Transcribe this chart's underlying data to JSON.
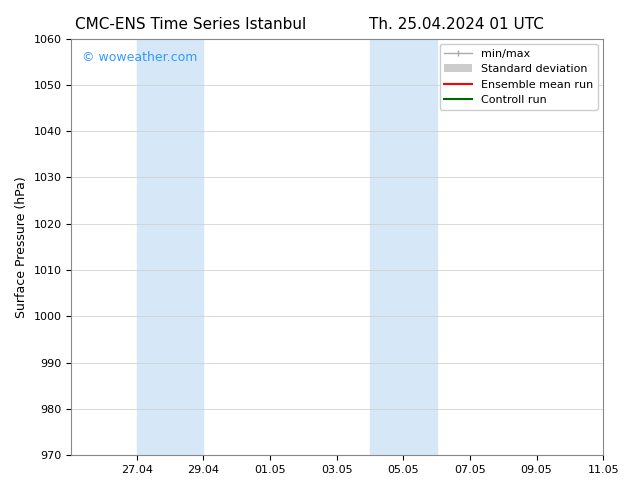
{
  "title_left": "CMC-ENS Time Series Istanbul",
  "title_right": "Th. 25.04.2024 01 UTC",
  "ylabel": "Surface Pressure (hPa)",
  "ylim": [
    970,
    1060
  ],
  "yticks": [
    970,
    980,
    990,
    1000,
    1010,
    1020,
    1030,
    1040,
    1050,
    1060
  ],
  "xlim_start": "2024-04-25",
  "xlim_end": "2024-05-11",
  "xtick_labels": [
    "27.04",
    "29.04",
    "01.05",
    "03.05",
    "05.05",
    "07.05",
    "09.05",
    "11.05"
  ],
  "shaded_bands": [
    {
      "x_start": "2024-04-27",
      "x_end": "2024-04-29"
    },
    {
      "x_start": "2024-05-04",
      "x_end": "2024-05-06"
    }
  ],
  "shaded_color": "#d6e8f7",
  "watermark": "© woweather.com",
  "watermark_color": "#3399ff",
  "bg_color": "#ffffff",
  "plot_bg_color": "#ffffff",
  "grid_color": "#cccccc",
  "legend_items": [
    {
      "label": "min/max",
      "color": "#aaaaaa",
      "lw": 1.0
    },
    {
      "label": "Standard deviation",
      "color": "#cccccc",
      "lw": 6
    },
    {
      "label": "Ensemble mean run",
      "color": "#ff0000",
      "lw": 1.5
    },
    {
      "label": "Controll run",
      "color": "#006600",
      "lw": 1.5
    }
  ],
  "title_fontsize": 11,
  "axis_label_fontsize": 9,
  "tick_fontsize": 8,
  "legend_fontsize": 8
}
